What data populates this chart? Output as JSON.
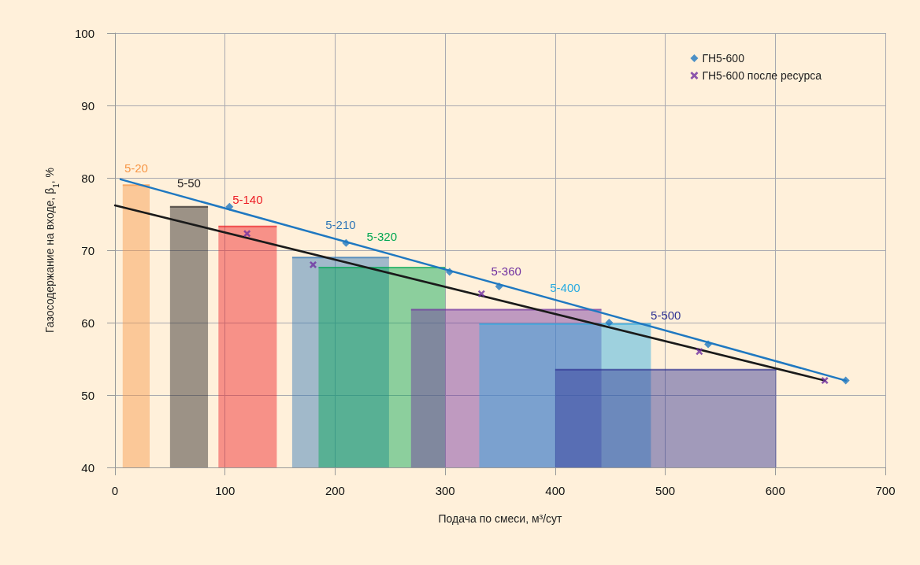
{
  "chart_data": {
    "type": "scatter",
    "xlabel": "Подача по смеси, м³/сут",
    "ylabel": "Газосодержание на входе, β$_{1}$, %",
    "xlim": [
      0,
      700
    ],
    "xticks": [
      0,
      100,
      200,
      300,
      400,
      500,
      600,
      700
    ],
    "ylim": [
      40,
      100
    ],
    "yticks": [
      40,
      50,
      60,
      70,
      80,
      90,
      100
    ],
    "grid": true,
    "legend": "top right",
    "series": [
      {
        "name": "5-20",
        "type": "area",
        "color": "#f79646",
        "x": [
          7,
          31.5
        ],
        "values": [
          79,
          79
        ]
      },
      {
        "name": "5-50",
        "type": "area",
        "color": "#231f20",
        "x": [
          50,
          84.5
        ],
        "values": [
          76,
          76
        ]
      },
      {
        "name": "5-140",
        "type": "area",
        "color": "#ed1c24",
        "x": [
          94,
          147
        ],
        "values": [
          73.3,
          73.3
        ]
      },
      {
        "name": "5-210",
        "type": "area",
        "color": "#2e75b6",
        "x": [
          161,
          249
        ],
        "values": [
          69,
          69
        ]
      },
      {
        "name": "5-320",
        "type": "area",
        "color": "#00a651",
        "x": [
          185,
          300
        ],
        "values": [
          67.6,
          67.6
        ]
      },
      {
        "name": "5-360",
        "type": "area",
        "color": "#7030a0",
        "x": [
          269,
          442
        ],
        "values": [
          61.8,
          61.8
        ]
      },
      {
        "name": "5-400",
        "type": "area",
        "color": "#29abe2",
        "x": [
          331,
          487
        ],
        "values": [
          59.8,
          59.8
        ]
      },
      {
        "name": "5-500",
        "type": "area",
        "color": "#2e3192",
        "x": [
          400,
          601
        ],
        "values": [
          53.5,
          53.5
        ]
      },
      {
        "type": "line",
        "color": "#1f78c1",
        "x": [
          5,
          664
        ],
        "values": [
          79.8,
          52
        ],
        "marker": "none"
      },
      {
        "type": "line",
        "color": "#1a1a1a",
        "x": [
          0,
          645
        ],
        "values": [
          76.2,
          52
        ],
        "marker": "none"
      },
      {
        "name": "ГН5-600",
        "color": "#1f78c1",
        "marker": "diamond",
        "x": [
          104,
          210,
          304,
          349,
          449,
          539,
          664
        ],
        "values": [
          76,
          71,
          67,
          65,
          60,
          57,
          52
        ]
      },
      {
        "name": "ГН5-600 после ресурса",
        "color": "#7030a0",
        "marker": "cross",
        "x": [
          120,
          180,
          333,
          531,
          645
        ],
        "values": [
          72.3,
          68,
          64,
          56,
          52
        ]
      }
    ]
  }
}
